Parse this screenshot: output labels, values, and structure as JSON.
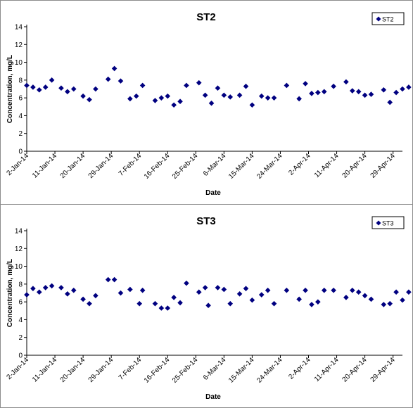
{
  "chart_data": [
    {
      "type": "scatter",
      "title": "ST2",
      "xlabel": "Date",
      "ylabel": "Concentration, mg/L",
      "ylim": [
        0,
        14
      ],
      "yticks": [
        0,
        2,
        4,
        6,
        8,
        10,
        12,
        14
      ],
      "xlim": [
        "2014-01-02",
        "2014-05-02"
      ],
      "xtick_labels": [
        "2-Jan-14",
        "11-Jan-14",
        "20-Jan-14",
        "29-Jan-14",
        "7-Feb-14",
        "16-Feb-14",
        "25-Feb-14",
        "6-Mar-14",
        "15-Mar-14",
        "24-Mar-14",
        "2-Apr-14",
        "11-Apr-14",
        "20-Apr-14",
        "29-Apr-14"
      ],
      "grid": false,
      "legend": "top-right",
      "marker_color": "#000080",
      "series": [
        {
          "name": "ST2",
          "points": [
            [
              "2014-01-02",
              7.4
            ],
            [
              "2014-01-04",
              7.2
            ],
            [
              "2014-01-06",
              6.9
            ],
            [
              "2014-01-08",
              7.2
            ],
            [
              "2014-01-10",
              8.0
            ],
            [
              "2014-01-13",
              7.1
            ],
            [
              "2014-01-15",
              6.7
            ],
            [
              "2014-01-17",
              7.0
            ],
            [
              "2014-01-20",
              6.2
            ],
            [
              "2014-01-22",
              5.8
            ],
            [
              "2014-01-24",
              7.0
            ],
            [
              "2014-01-28",
              8.1
            ],
            [
              "2014-01-30",
              9.3
            ],
            [
              "2014-02-01",
              7.9
            ],
            [
              "2014-02-04",
              5.9
            ],
            [
              "2014-02-06",
              6.2
            ],
            [
              "2014-02-08",
              7.4
            ],
            [
              "2014-02-12",
              5.7
            ],
            [
              "2014-02-14",
              6.0
            ],
            [
              "2014-02-16",
              6.2
            ],
            [
              "2014-02-18",
              5.2
            ],
            [
              "2014-02-20",
              5.6
            ],
            [
              "2014-02-22",
              7.4
            ],
            [
              "2014-02-26",
              7.7
            ],
            [
              "2014-02-28",
              6.3
            ],
            [
              "2014-03-02",
              5.4
            ],
            [
              "2014-03-04",
              7.1
            ],
            [
              "2014-03-06",
              6.3
            ],
            [
              "2014-03-08",
              6.1
            ],
            [
              "2014-03-11",
              6.3
            ],
            [
              "2014-03-13",
              7.3
            ],
            [
              "2014-03-15",
              5.2
            ],
            [
              "2014-03-18",
              6.2
            ],
            [
              "2014-03-20",
              6.0
            ],
            [
              "2014-03-22",
              6.0
            ],
            [
              "2014-03-26",
              7.4
            ],
            [
              "2014-03-30",
              5.9
            ],
            [
              "2014-04-01",
              7.6
            ],
            [
              "2014-04-03",
              6.5
            ],
            [
              "2014-04-05",
              6.6
            ],
            [
              "2014-04-07",
              6.7
            ],
            [
              "2014-04-10",
              7.3
            ],
            [
              "2014-04-14",
              7.8
            ],
            [
              "2014-04-16",
              6.8
            ],
            [
              "2014-04-18",
              6.7
            ],
            [
              "2014-04-20",
              6.3
            ],
            [
              "2014-04-22",
              6.4
            ],
            [
              "2014-04-26",
              6.9
            ],
            [
              "2014-04-28",
              5.5
            ],
            [
              "2014-04-30",
              6.6
            ],
            [
              "2014-05-02",
              7.0
            ],
            [
              "2014-05-04",
              7.2
            ]
          ]
        }
      ]
    },
    {
      "type": "scatter",
      "title": "ST3",
      "xlabel": "Date",
      "ylabel": "Concentration, mg/L",
      "ylim": [
        0,
        14
      ],
      "yticks": [
        0,
        2,
        4,
        6,
        8,
        10,
        12,
        14
      ],
      "xlim": [
        "2014-01-02",
        "2014-05-02"
      ],
      "xtick_labels": [
        "2-Jan-14",
        "11-Jan-14",
        "20-Jan-14",
        "29-Jan-14",
        "7-Feb-14",
        "16-Feb-14",
        "25-Feb-14",
        "6-Mar-14",
        "15-Mar-14",
        "24-Mar-14",
        "2-Apr-14",
        "11-Apr-14",
        "20-Apr-14",
        "29-Apr-14"
      ],
      "grid": false,
      "legend": "top-right",
      "marker_color": "#000080",
      "series": [
        {
          "name": "ST3",
          "points": [
            [
              "2014-01-02",
              6.8
            ],
            [
              "2014-01-04",
              7.5
            ],
            [
              "2014-01-06",
              7.1
            ],
            [
              "2014-01-08",
              7.6
            ],
            [
              "2014-01-10",
              7.8
            ],
            [
              "2014-01-13",
              7.6
            ],
            [
              "2014-01-15",
              6.9
            ],
            [
              "2014-01-17",
              7.3
            ],
            [
              "2014-01-20",
              6.3
            ],
            [
              "2014-01-22",
              5.8
            ],
            [
              "2014-01-24",
              6.7
            ],
            [
              "2014-01-28",
              8.5
            ],
            [
              "2014-01-30",
              8.5
            ],
            [
              "2014-02-01",
              7.0
            ],
            [
              "2014-02-04",
              7.4
            ],
            [
              "2014-02-07",
              5.8
            ],
            [
              "2014-02-08",
              7.3
            ],
            [
              "2014-02-12",
              5.8
            ],
            [
              "2014-02-14",
              5.3
            ],
            [
              "2014-02-16",
              5.3
            ],
            [
              "2014-02-18",
              6.5
            ],
            [
              "2014-02-20",
              5.9
            ],
            [
              "2014-02-22",
              8.1
            ],
            [
              "2014-02-26",
              7.1
            ],
            [
              "2014-02-28",
              7.6
            ],
            [
              "2014-03-01",
              5.6
            ],
            [
              "2014-03-04",
              7.6
            ],
            [
              "2014-03-06",
              7.4
            ],
            [
              "2014-03-08",
              5.8
            ],
            [
              "2014-03-11",
              6.9
            ],
            [
              "2014-03-13",
              7.5
            ],
            [
              "2014-03-15",
              6.2
            ],
            [
              "2014-03-18",
              6.8
            ],
            [
              "2014-03-20",
              7.3
            ],
            [
              "2014-03-22",
              5.8
            ],
            [
              "2014-03-26",
              7.3
            ],
            [
              "2014-03-30",
              6.3
            ],
            [
              "2014-04-01",
              7.3
            ],
            [
              "2014-04-03",
              5.7
            ],
            [
              "2014-04-05",
              6.0
            ],
            [
              "2014-04-07",
              7.3
            ],
            [
              "2014-04-10",
              7.3
            ],
            [
              "2014-04-14",
              6.5
            ],
            [
              "2014-04-16",
              7.3
            ],
            [
              "2014-04-18",
              7.1
            ],
            [
              "2014-04-20",
              6.7
            ],
            [
              "2014-04-22",
              6.3
            ],
            [
              "2014-04-26",
              5.7
            ],
            [
              "2014-04-28",
              5.8
            ],
            [
              "2014-04-30",
              7.1
            ],
            [
              "2014-05-02",
              6.2
            ],
            [
              "2014-05-04",
              7.1
            ]
          ]
        }
      ]
    }
  ]
}
